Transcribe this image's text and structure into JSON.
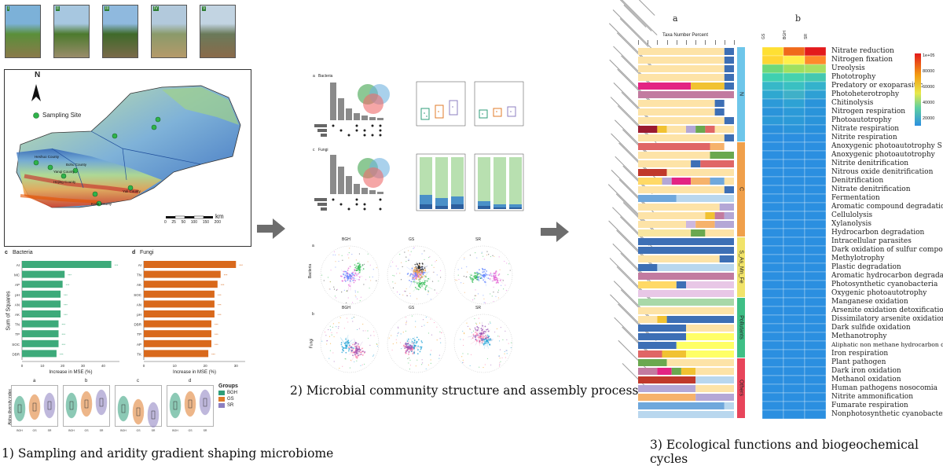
{
  "panel1": {
    "photos": [
      "I",
      "II",
      "III",
      "IV",
      "V"
    ],
    "map": {
      "north": "N",
      "legend": "Sampling Site",
      "scale_unit": "km",
      "scale_ticks": [
        "0",
        "25",
        "50",
        "100",
        "150",
        "200"
      ],
      "counties": [
        "Yanqi County",
        "Heshuo County",
        "Hejing County",
        "Bohu County",
        "Korla County",
        "Yuli County"
      ]
    },
    "importance": {
      "bacteria": {
        "label": "c",
        "title": "Bacteria",
        "ylabel": "Sum of Squares",
        "xlabel": "Increase in MSE (%)",
        "color": "#3daa7a",
        "categories": [
          "AI",
          "MC",
          "AP",
          "pH",
          "AN",
          "AK",
          "TN",
          "TP",
          "SOC",
          "DBR"
        ],
        "values": [
          44,
          21,
          20,
          19,
          19,
          19,
          18,
          18,
          18,
          17
        ],
        "xticks": [
          "0",
          "10",
          "20",
          "30",
          "40"
        ],
        "xlim": [
          0,
          48
        ]
      },
      "fungi": {
        "label": "d",
        "title": "Fungi",
        "xlabel": "Increase in MSE (%)",
        "color": "#d9691c",
        "categories": [
          "AI",
          "TN",
          "AK",
          "SOC",
          "AN",
          "pH",
          "DBR",
          "TP",
          "AP",
          "TK"
        ],
        "values": [
          30,
          25,
          24,
          23,
          23,
          23,
          22,
          22,
          22,
          21
        ],
        "xticks": [
          "0",
          "10",
          "20",
          "30"
        ],
        "xlim": [
          0,
          33
        ]
      }
    },
    "violin": {
      "ylabel": "Alpha diversity index",
      "panels": [
        "a",
        "b",
        "c",
        "d"
      ],
      "groups_title": "Groups",
      "groups": [
        {
          "name": "BGH",
          "color": "#2f9e7a"
        },
        {
          "name": "GS",
          "color": "#e07b2a"
        },
        {
          "name": "SR",
          "color": "#8c7fc0"
        }
      ]
    },
    "caption": "1) Sampling and aridity gradient shaping microbiome"
  },
  "panel2": {
    "upset_bacteria": {
      "label": "a",
      "title": "Bacteria"
    },
    "upset_fungi": {
      "label": "c",
      "title": "Fungi"
    },
    "networks": {
      "row_a": {
        "label": "a",
        "side": "Bacteria"
      },
      "row_b": {
        "label": "b",
        "side": "Fungi"
      },
      "columns": [
        "BGH",
        "GS",
        "SR"
      ]
    },
    "caption": "2) Microbial community structure and assembly process"
  },
  "panel3": {
    "bar_label": "a",
    "bar_title": "Taxa Number Percent",
    "heat_label": "b",
    "heat_columns": [
      "GS",
      "BGH",
      "SR"
    ],
    "legend_ticks": [
      "1e+05",
      "80000",
      "60000",
      "40000",
      "20000"
    ],
    "groups": [
      {
        "name": "N",
        "color": "#6ec6ea"
      },
      {
        "name": "C",
        "color": "#f0a04b"
      },
      {
        "name": "S_As_Mn_Fe",
        "color": "#f1e36a"
      },
      {
        "name": "Pollutants",
        "color": "#3fbf86"
      },
      {
        "name": "Others",
        "color": "#e8455b"
      }
    ],
    "functions": [
      "Nitrate reduction",
      "Nitrogen fixation",
      "Ureolysis",
      "Phototrophy",
      "Predatory or exoparasitic",
      "Photoheterotrophy",
      "Chitinolysis",
      "Nitrogen respiration",
      "Photoautotrophy",
      "Nitrate respiration",
      "Nitrite respiration",
      "Anoxygenic photoautotrophy S oxidizing",
      "Anoxygenic photoautotrophy",
      "Nitrite denitrification",
      "Nitrous oxide denitrification",
      "Denitrification",
      "Nitrate denitrification",
      "Fermentation",
      "Aromatic compound degradation",
      "Cellulolysis",
      "Xylanolysis",
      "Hydrocarbon degradation",
      "Intracellular parasites",
      "Dark oxidation of sulfur compounds",
      "Methylotrophy",
      "Plastic degradation",
      "Aromatic hydrocarbon degradation",
      "Photosynthetic cyanobacteria",
      "Oxygenic photoautotrophy",
      "Manganese oxidation",
      "Arsenite oxidation detoxification",
      "Dissimilatory arsenite oxidation",
      "Dark sulfide oxidation",
      "Methanotrophy",
      "Aliphatic non methane hydrocarbon degradation",
      "Iron respiration",
      "Plant pathogen",
      "Dark iron oxidation",
      "Methanol oxidation",
      "Human pathogens nosocomia",
      "Nitrite ammonification",
      "Fumarate respiration",
      "Nonphotosynthetic cyanobacteria"
    ],
    "caption": "3) Ecological functions and biogeochemical cycles"
  }
}
